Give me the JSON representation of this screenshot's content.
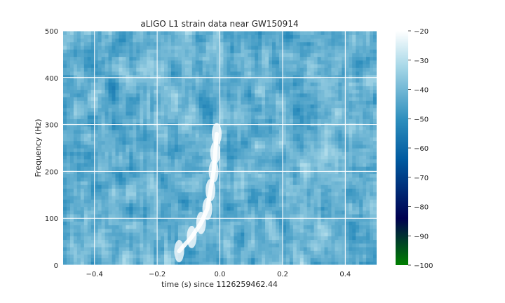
{
  "chart_data": {
    "type": "heatmap",
    "title": "aLIGO L1 strain data near GW150914",
    "xlabel": "time (s) since 1126259462.44",
    "ylabel": "Frequency (Hz)",
    "xlim": [
      -0.5,
      0.5
    ],
    "ylim": [
      0,
      500
    ],
    "x_ticks": [
      -0.4,
      -0.2,
      0.0,
      0.2,
      0.4
    ],
    "x_tick_labels": [
      "−0.4",
      "−0.2",
      "0.0",
      "0.2",
      "0.4"
    ],
    "y_ticks": [
      0,
      100,
      200,
      300,
      400,
      500
    ],
    "y_tick_labels": [
      "0",
      "100",
      "200",
      "300",
      "400",
      "500"
    ],
    "grid": true,
    "colorbar": {
      "range": [
        -100,
        -20
      ],
      "ticks": [
        -20,
        -30,
        -40,
        -50,
        -60,
        -70,
        -80,
        -90,
        -100
      ],
      "tick_labels": [
        "−20",
        "−30",
        "−40",
        "−50",
        "−60",
        "−70",
        "−80",
        "−90",
        "−100"
      ],
      "colormap": "ocean",
      "colors": [
        "#008000",
        "#000050",
        "#005aa0",
        "#2d8ebd",
        "#a8d8e8",
        "#ffffff"
      ]
    },
    "background_level_db": -42,
    "chirp": {
      "description_points_time_s": [
        -0.13,
        -0.09,
        -0.06,
        -0.04,
        -0.03,
        -0.02,
        -0.015,
        -0.01
      ],
      "description_points_freq_hz": [
        30,
        60,
        90,
        120,
        160,
        200,
        240,
        280
      ],
      "peak_level_db": -20
    }
  }
}
